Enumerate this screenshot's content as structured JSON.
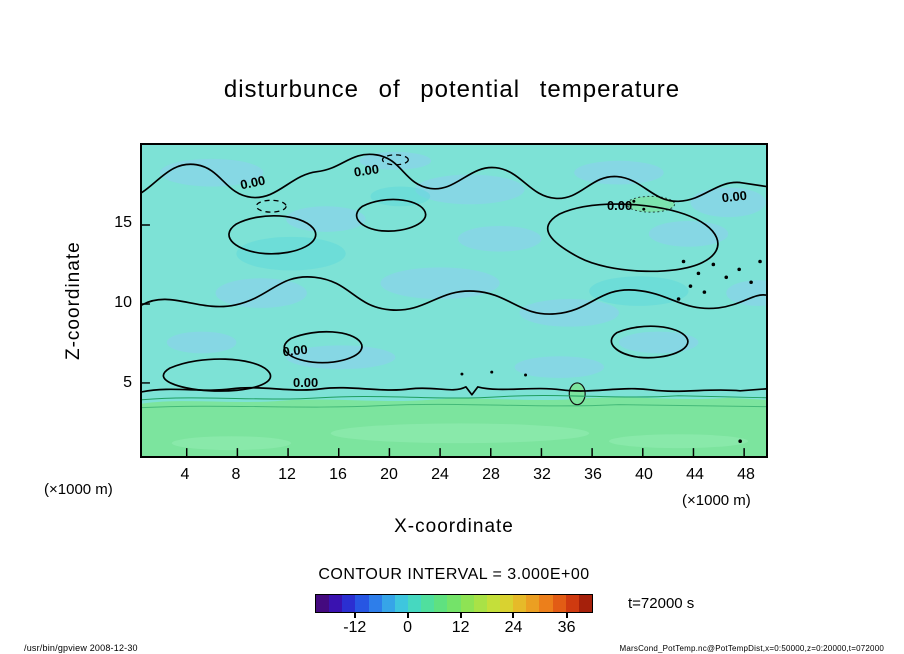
{
  "chart_data": {
    "type": "contour",
    "title": "disturbunce  of  potential  temperature",
    "xlabel": "X-coordinate",
    "ylabel": "Z-coordinate",
    "x_unit": "(×1000 m)",
    "y_unit": "(×1000 m)",
    "x_ticks": [
      "4",
      "8",
      "12",
      "16",
      "20",
      "24",
      "28",
      "32",
      "36",
      "40",
      "44",
      "48"
    ],
    "y_ticks": [
      "15",
      "10",
      "5"
    ],
    "contour_label": "0.00",
    "contour_levels_shown": [
      0.0
    ],
    "contour_interval": 3.0,
    "grid": false,
    "field": {
      "description": "Filled contour field of potential temperature disturbance; mostly near-zero cyan/blue aloft with a warmer green band below z≈4, zero contours drawn in black (negative contours dashed).",
      "base_fill": "#7de2d6",
      "cool_patch_fill": "#8fcdf2",
      "deep_patch_fill": "#5ad8dc",
      "surface_band_fill": "#7ce49e",
      "surface_band_light": "#96eeb6",
      "contour_line_color": "#000000",
      "zero_line_green": "#1f9e60"
    }
  },
  "legend": {
    "contour_interval_label": "CONTOUR INTERVAL = 3.000E+00",
    "time_label": "t=72000 s",
    "colorbar": {
      "min": -21,
      "max": 42,
      "tick_labels": [
        "-12",
        "0",
        "12",
        "24",
        "36"
      ],
      "tick_positions_pct": [
        14.3,
        33.3,
        52.4,
        71.4,
        90.5
      ],
      "colors": [
        "#440a7f",
        "#3a12b0",
        "#2b2fd1",
        "#2756e3",
        "#2e7eea",
        "#36a5e8",
        "#3ec6de",
        "#46d8c0",
        "#50df9e",
        "#5fe180",
        "#74e369",
        "#8ee354",
        "#a9e246",
        "#c4df3a",
        "#d9d230",
        "#e6ba29",
        "#eb9f22",
        "#ec7f1b",
        "#e25c15",
        "#cf3a10",
        "#a5200b"
      ]
    }
  },
  "footer": {
    "left": "/usr/bin/gpview  2008-12-30",
    "right": "MarsCond_PotTemp.nc@PotTempDist,x=0:50000,z=0:20000,t=072000"
  }
}
